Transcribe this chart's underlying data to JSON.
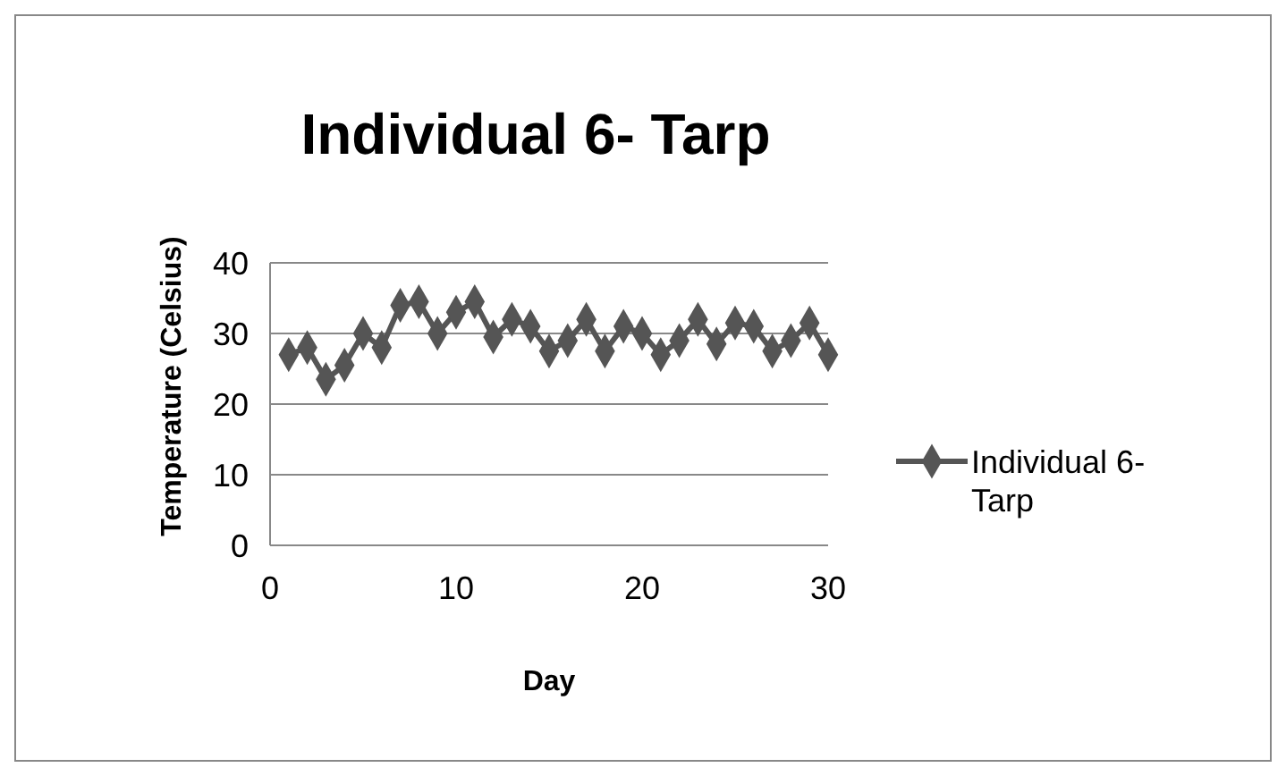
{
  "chart_data": {
    "type": "line",
    "title": "Individual 6- Tarp",
    "xlabel": "Day",
    "ylabel": "Temperature (Celsius)",
    "x": [
      1,
      2,
      3,
      4,
      5,
      6,
      7,
      8,
      9,
      10,
      11,
      12,
      13,
      14,
      15,
      16,
      17,
      18,
      19,
      20,
      21,
      22,
      23,
      24,
      25,
      26,
      27,
      28,
      29,
      30
    ],
    "series": [
      {
        "name": "Individual 6- Tarp",
        "color": "#555555",
        "values": [
          27,
          28,
          23.5,
          25.5,
          30,
          28,
          34,
          34.5,
          30,
          33,
          34.5,
          29.5,
          32,
          31,
          27.5,
          29,
          32,
          27.5,
          31,
          30,
          27,
          29,
          32,
          28.5,
          31.5,
          31,
          27.5,
          29,
          31.5,
          27
        ]
      }
    ],
    "xlim": [
      0,
      30
    ],
    "xticks": [
      0,
      10,
      20,
      30
    ],
    "ylim": [
      0,
      40
    ],
    "yticks": [
      0,
      10,
      20,
      30,
      40
    ],
    "grid": "y",
    "legend": "right",
    "marker": "diamond",
    "line_style": "solid"
  }
}
